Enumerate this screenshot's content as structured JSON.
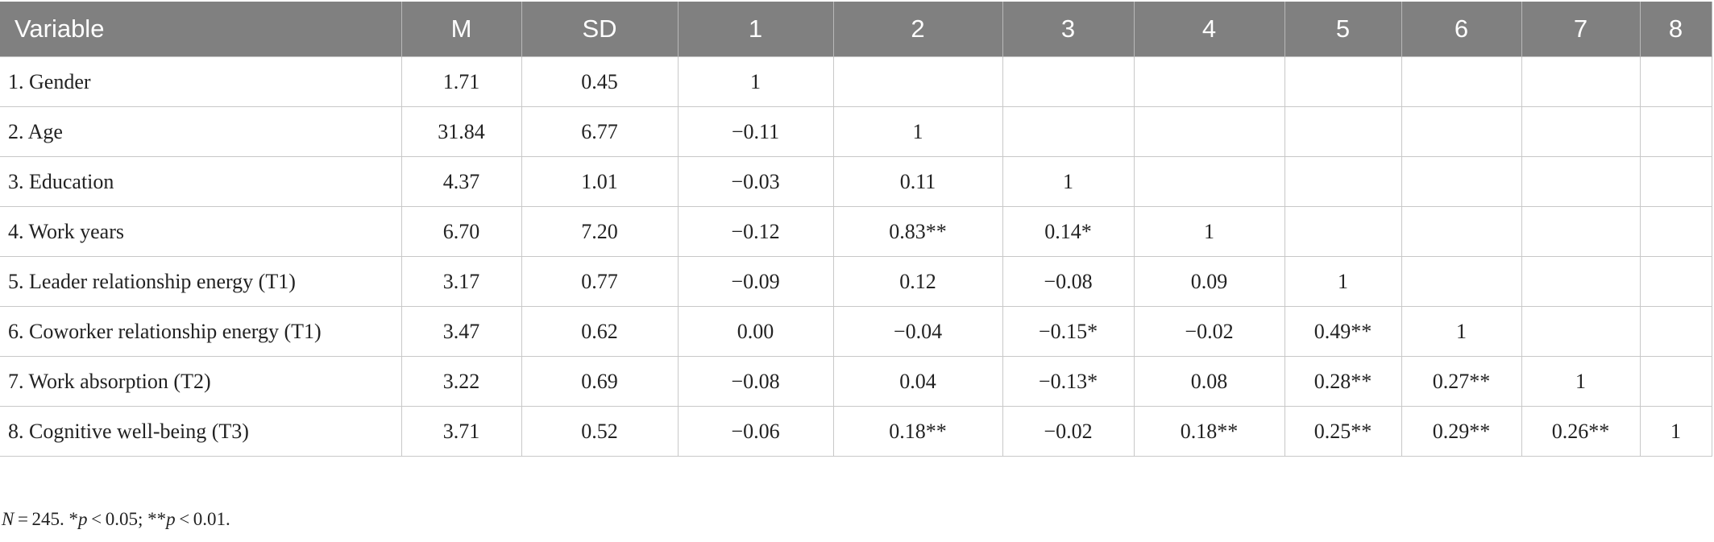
{
  "table": {
    "header": [
      "Variable",
      "M",
      "SD",
      "1",
      "2",
      "3",
      "4",
      "5",
      "6",
      "7",
      "8"
    ],
    "rows": [
      [
        "1. Gender",
        "1.71",
        "0.45",
        "1"
      ],
      [
        "2. Age",
        "31.84",
        "6.77",
        "−0.11",
        "1"
      ],
      [
        "3. Education",
        "4.37",
        "1.01",
        "−0.03",
        "0.11",
        "1"
      ],
      [
        "4. Work years",
        "6.70",
        "7.20",
        "−0.12",
        "0.83**",
        "0.14*",
        "1"
      ],
      [
        "5. Leader relationship energy (T1)",
        "3.17",
        "0.77",
        "−0.09",
        "0.12",
        "−0.08",
        "0.09",
        "1"
      ],
      [
        "6. Coworker relationship energy (T1)",
        "3.47",
        "0.62",
        "0.00",
        "−0.04",
        "−0.15*",
        "−0.02",
        "0.49**",
        "1"
      ],
      [
        "7. Work absorption (T2)",
        "3.22",
        "0.69",
        "−0.08",
        "0.04",
        "−0.13*",
        "0.08",
        "0.28**",
        "0.27**",
        "1"
      ],
      [
        "8. Cognitive well-being (T3)",
        "3.71",
        "0.52",
        "−0.06",
        "0.18**",
        "−0.02",
        "0.18**",
        "0.25**",
        "0.29**",
        "0.26**",
        "1"
      ]
    ]
  },
  "note": [
    "N",
    " = 245. *",
    "p",
    " < 0.05; **",
    "p",
    " < 0.01."
  ]
}
